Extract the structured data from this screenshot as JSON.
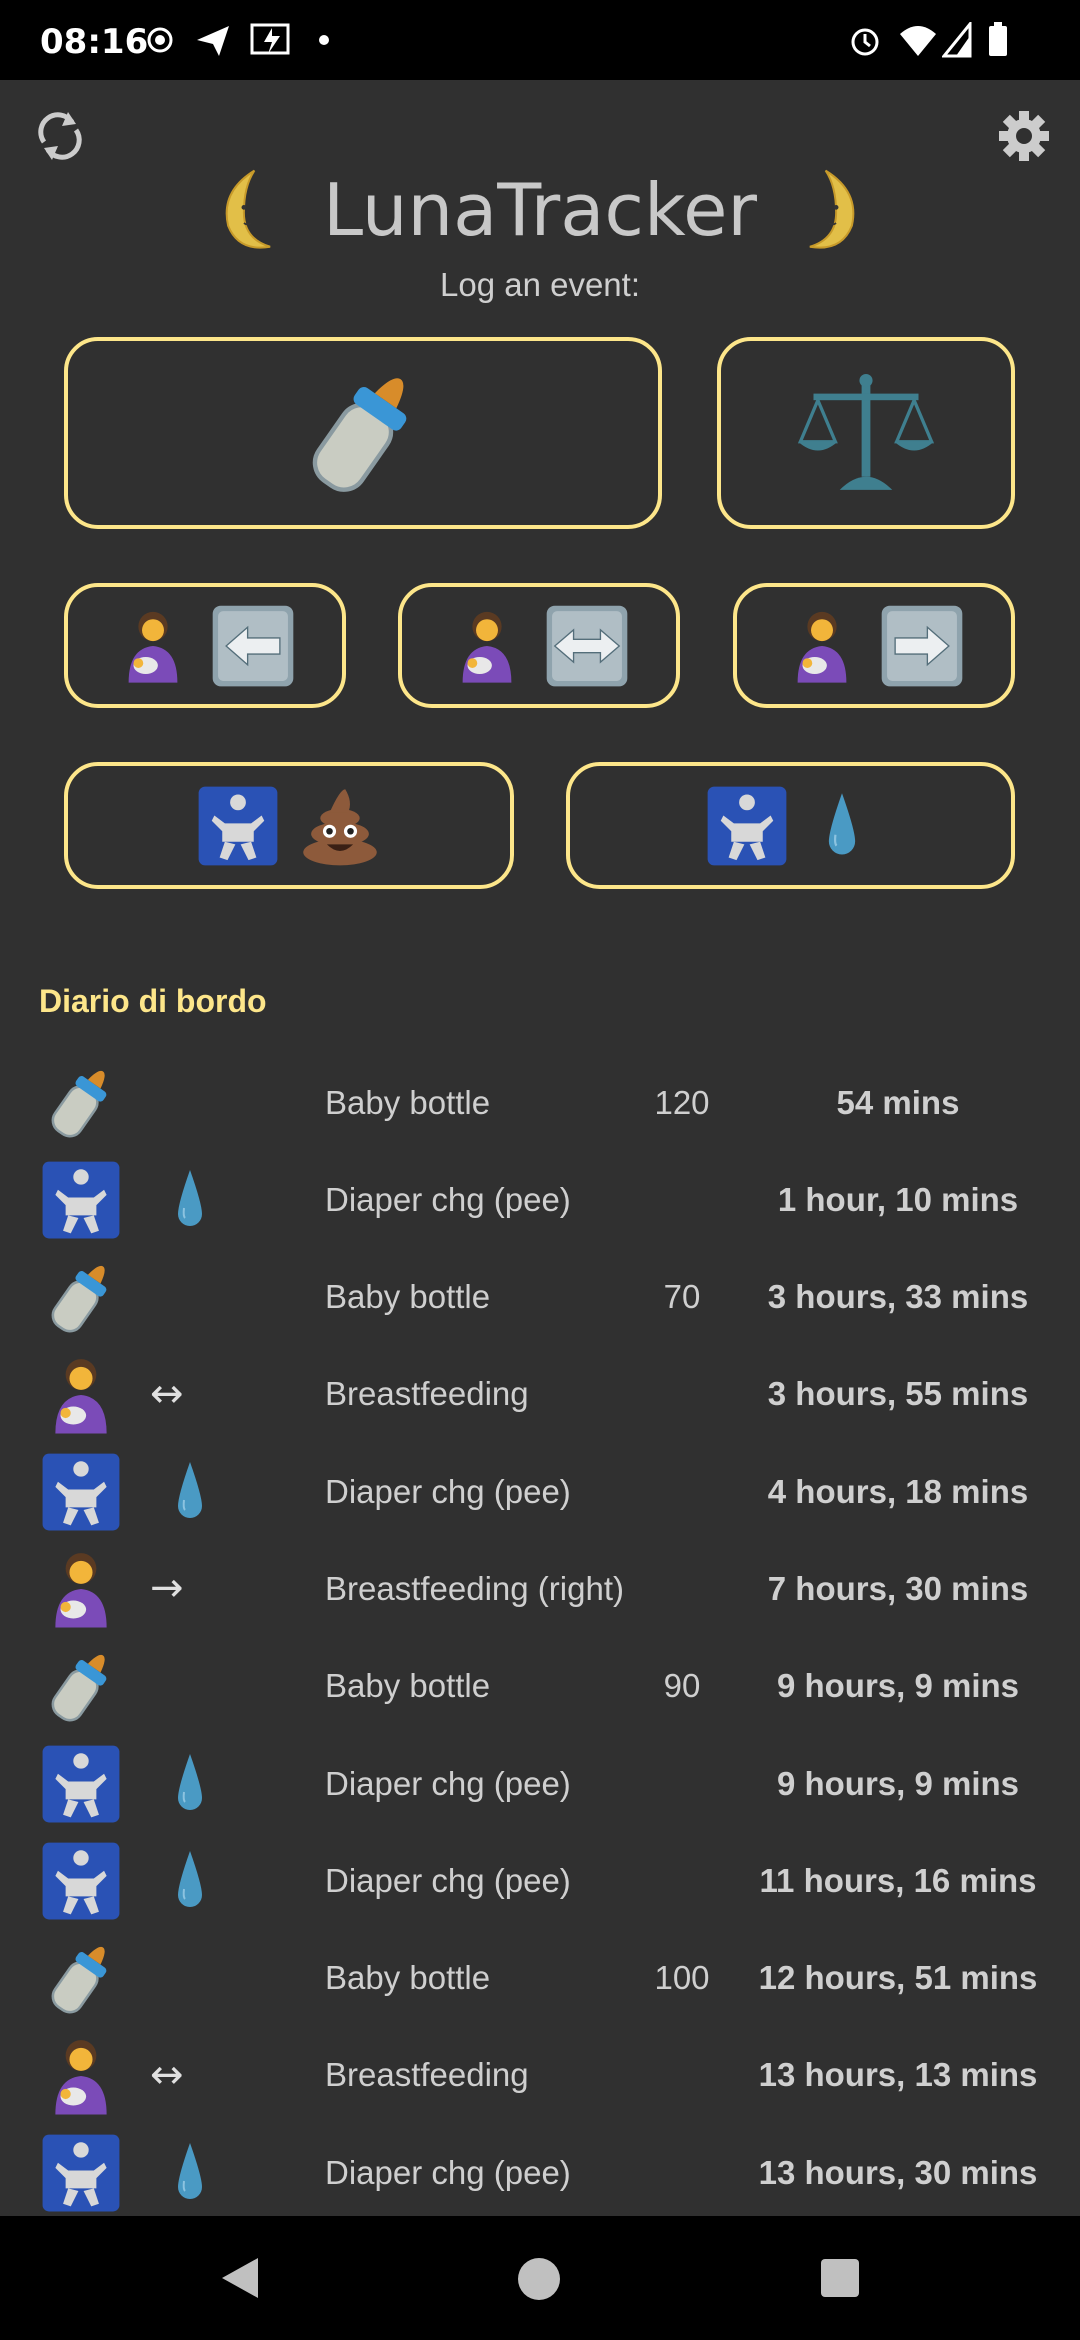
{
  "status_bar": {
    "time": "08:16",
    "icons": [
      "record-icon",
      "telegram-icon",
      "screencast-icon",
      "dot-icon",
      "alarm-icon",
      "wifi-icon",
      "signal-icon",
      "battery-icon"
    ]
  },
  "header": {
    "title": "LunaTracker",
    "subtitle": "Log an event:",
    "sync_icon": "sync-icon",
    "settings_icon": "gear-icon",
    "title_icons": [
      "crescent-moon-face-icon",
      "crescent-moon-face-icon"
    ]
  },
  "buttons": [
    {
      "name": "baby-bottle",
      "icons": [
        "bottle"
      ]
    },
    {
      "name": "weight",
      "icons": [
        "scale"
      ]
    },
    {
      "name": "breastfeeding-left",
      "icons": [
        "mom",
        "keyl"
      ]
    },
    {
      "name": "breastfeeding-both",
      "icons": [
        "mom",
        "keylr"
      ]
    },
    {
      "name": "breastfeeding-right",
      "icons": [
        "mom",
        "keyr"
      ]
    },
    {
      "name": "diaper-poo",
      "icons": [
        "baby",
        "poop"
      ]
    },
    {
      "name": "diaper-pee",
      "icons": [
        "baby",
        "drop"
      ]
    }
  ],
  "colors": {
    "accent": "#fde68a",
    "background": "#303030"
  },
  "log": {
    "title": "Diario di bordo",
    "entries": [
      {
        "icon": "bottle",
        "extra": "",
        "label": "Baby bottle",
        "amount": "120",
        "time": "54 mins"
      },
      {
        "icon": "baby",
        "extra": "drop",
        "label": "Diaper chg (pee)",
        "amount": "",
        "time": "1 hour, 10 mins"
      },
      {
        "icon": "bottle",
        "extra": "",
        "label": "Baby bottle",
        "amount": "70",
        "time": "3 hours, 33 mins"
      },
      {
        "icon": "mom",
        "extra": "↔",
        "label": "Breastfeeding",
        "amount": "",
        "time": "3 hours, 55 mins"
      },
      {
        "icon": "baby",
        "extra": "drop",
        "label": "Diaper chg (pee)",
        "amount": "",
        "time": "4 hours, 18 mins"
      },
      {
        "icon": "mom",
        "extra": "→",
        "label": "Breastfeeding (right)",
        "amount": "",
        "time": "7 hours, 30 mins"
      },
      {
        "icon": "bottle",
        "extra": "",
        "label": "Baby bottle",
        "amount": "90",
        "time": "9 hours, 9 mins"
      },
      {
        "icon": "baby",
        "extra": "drop",
        "label": "Diaper chg (pee)",
        "amount": "",
        "time": "9 hours, 9 mins"
      },
      {
        "icon": "baby",
        "extra": "drop",
        "label": "Diaper chg (pee)",
        "amount": "",
        "time": "11 hours, 16 mins"
      },
      {
        "icon": "bottle",
        "extra": "",
        "label": "Baby bottle",
        "amount": "100",
        "time": "12 hours, 51 mins"
      },
      {
        "icon": "mom",
        "extra": "↔",
        "label": "Breastfeeding",
        "amount": "",
        "time": "13 hours, 13 mins"
      },
      {
        "icon": "baby",
        "extra": "drop",
        "label": "Diaper chg (pee)",
        "amount": "",
        "time": "13 hours, 30 mins"
      }
    ]
  },
  "nav_bar": {
    "icons": [
      "back-icon",
      "home-icon",
      "recents-icon"
    ]
  }
}
